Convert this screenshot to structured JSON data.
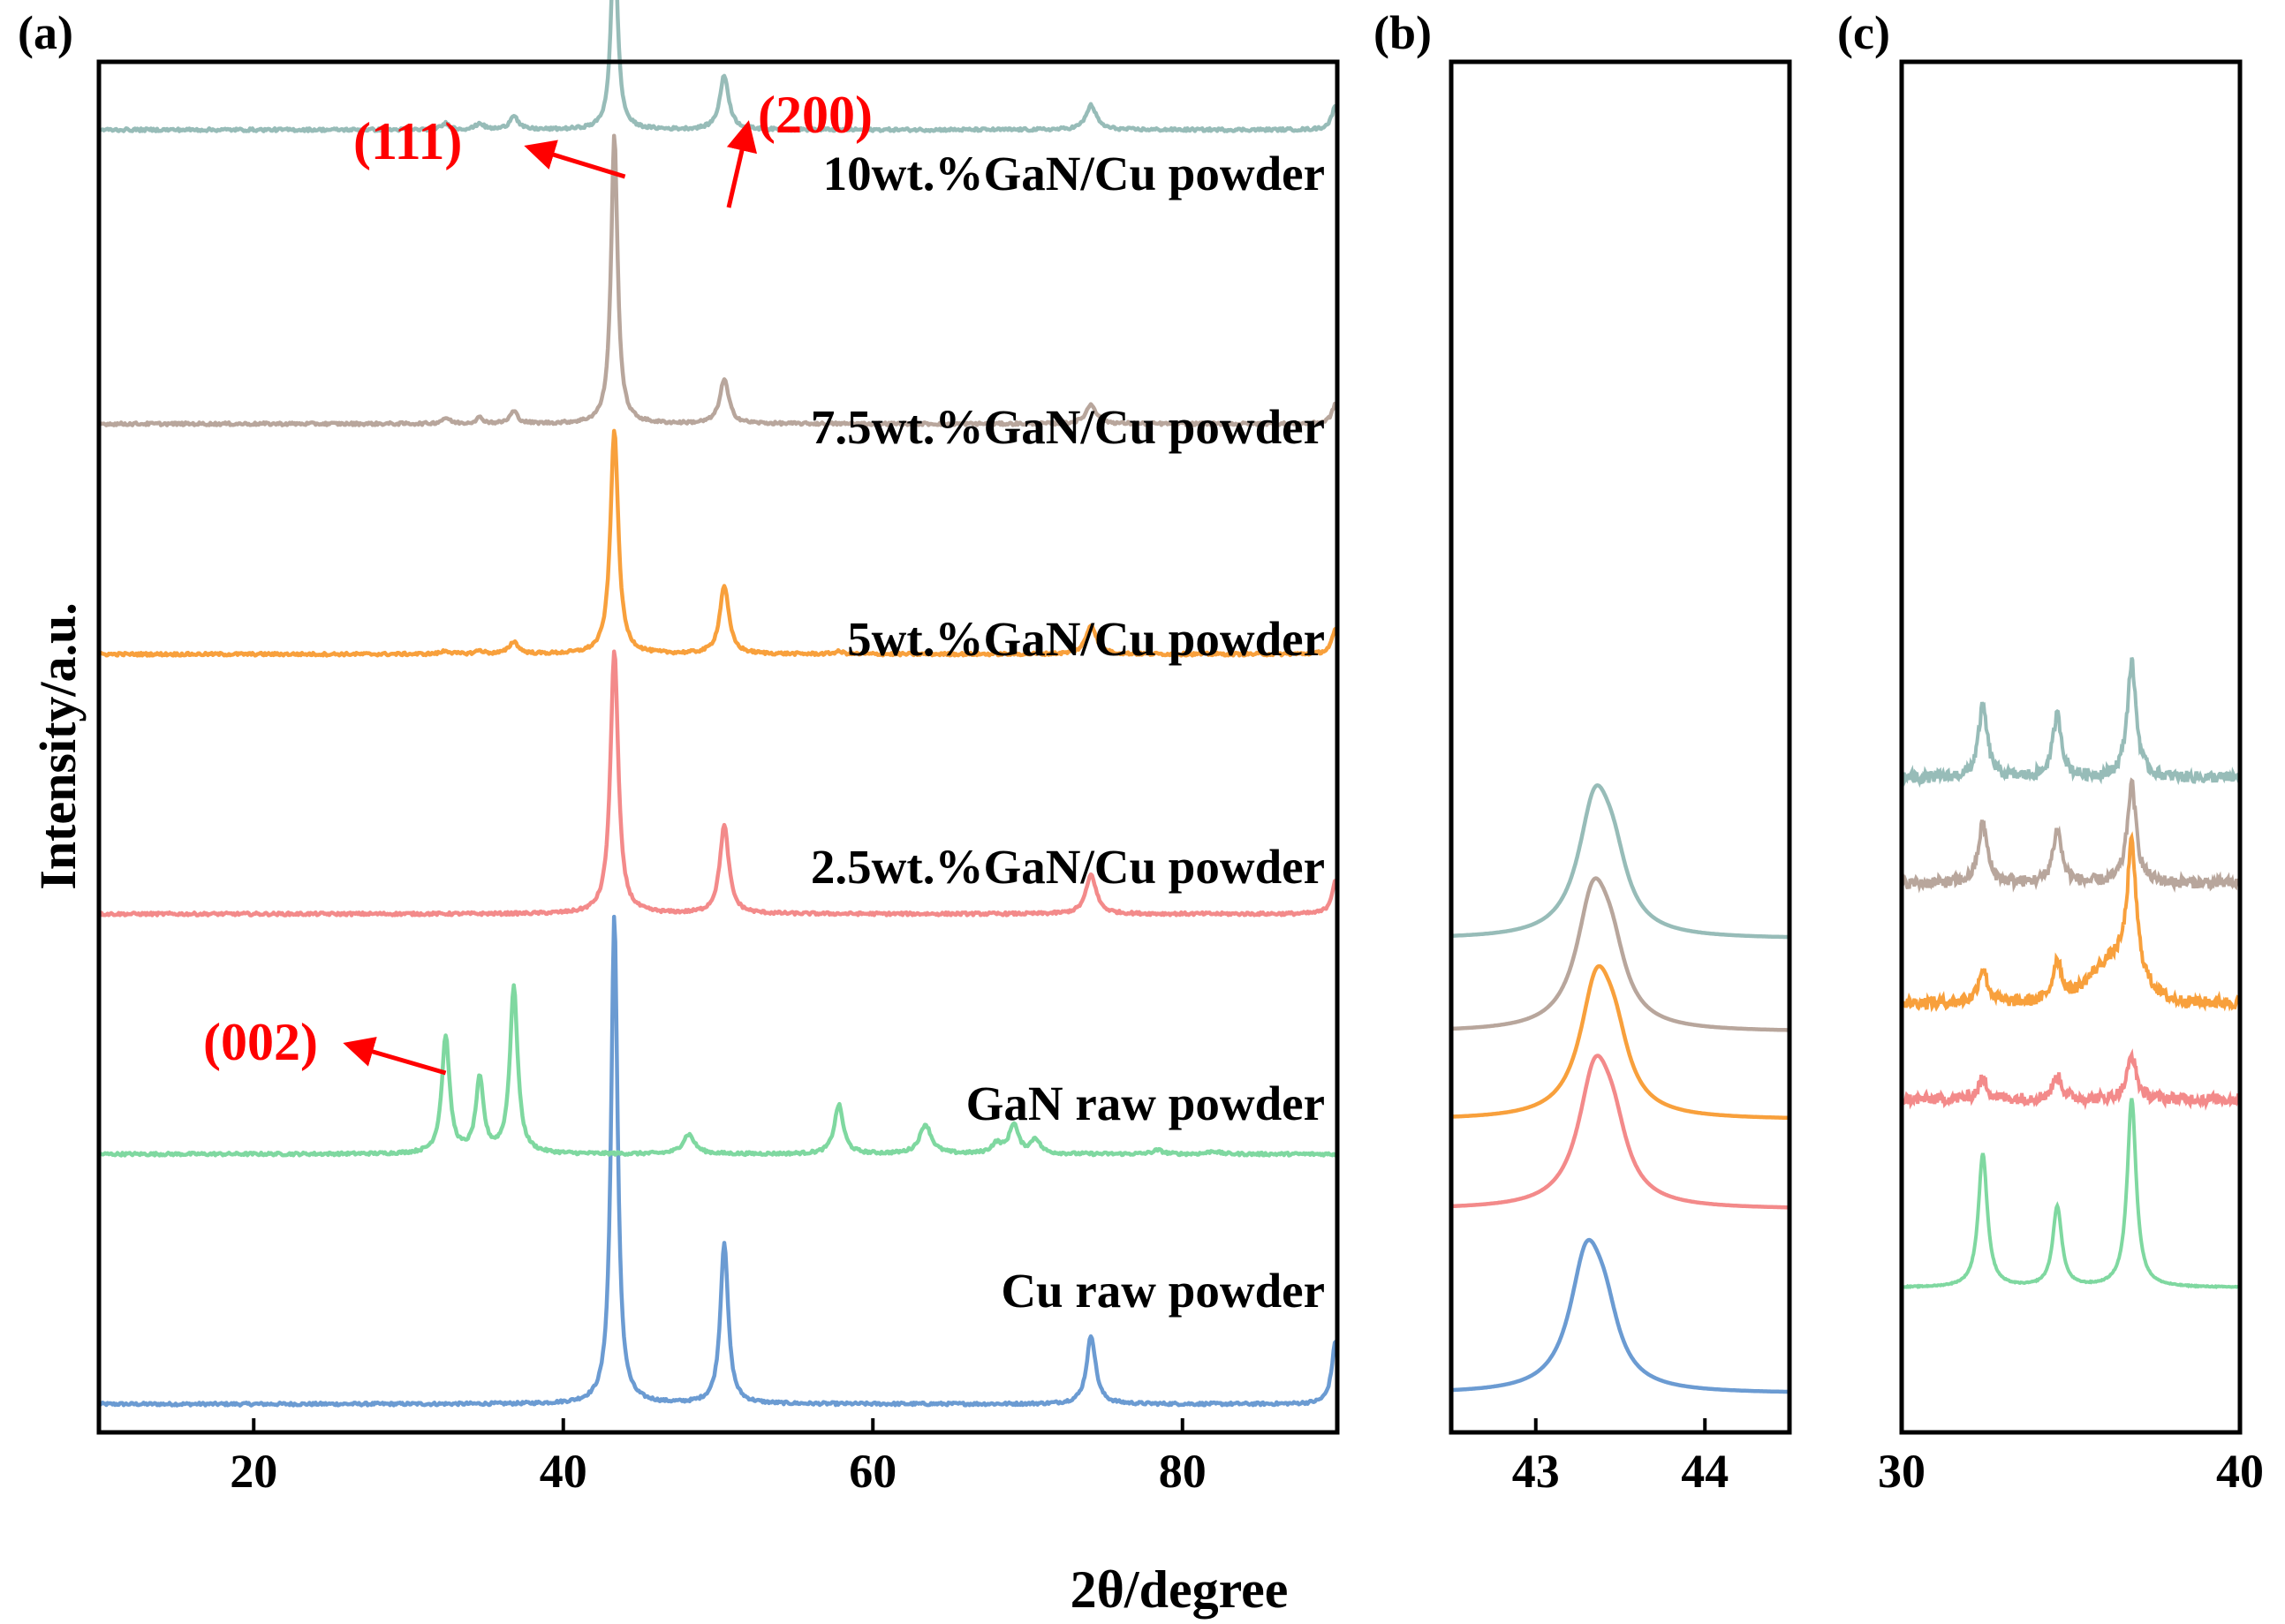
{
  "figure": {
    "x_axis_label": "2θ/degree",
    "y_axis_label": "Intensity/a.u."
  },
  "colors": {
    "Cu raw powder": "#6b9bd2",
    "GaN raw powder": "#7fd8a0",
    "2.5wt.%GaN/Cu powder": "#f38a8a",
    "5wt.%GaN/Cu powder": "#f8a03c",
    "7.5wt.%GaN/Cu powder": "#b8a69c",
    "10wt.%GaN/Cu powder": "#97bcb8",
    "annotation": "#ff0000"
  },
  "chart_data": [
    {
      "panel": "(a)",
      "type": "line",
      "xlabel": "2θ/degree",
      "ylabel": "Intensity/a.u.",
      "xlim": [
        10,
        90
      ],
      "xticks": [
        20,
        40,
        60,
        80
      ],
      "y_ticks_shown": false,
      "series": [
        {
          "name": "Cu raw powder",
          "label": "Cu raw powder",
          "offset": 0,
          "peaks": [
            {
              "x": 43.3,
              "h": 100,
              "w": 0.25
            },
            {
              "x": 50.4,
              "h": 33,
              "w": 0.3
            },
            {
              "x": 74.1,
              "h": 14,
              "w": 0.35
            },
            {
              "x": 89.9,
              "h": 13,
              "w": 0.3
            }
          ]
        },
        {
          "name": "GaN raw powder",
          "label": "GaN raw powder",
          "offset": 51,
          "peaks": [
            {
              "x": 32.4,
              "h": 24,
              "w": 0.3
            },
            {
              "x": 34.6,
              "h": 15,
              "w": 0.3
            },
            {
              "x": 36.8,
              "h": 34,
              "w": 0.3
            },
            {
              "x": 48.1,
              "h": 4,
              "w": 0.45
            },
            {
              "x": 57.8,
              "h": 10,
              "w": 0.35
            },
            {
              "x": 63.4,
              "h": 6,
              "w": 0.45
            },
            {
              "x": 68.0,
              "h": 2,
              "w": 0.4
            },
            {
              "x": 69.1,
              "h": 6,
              "w": 0.35
            },
            {
              "x": 70.5,
              "h": 3,
              "w": 0.35
            },
            {
              "x": 78.4,
              "h": 0.8,
              "w": 0.4
            },
            {
              "x": 82.0,
              "h": 0.6,
              "w": 0.4
            }
          ]
        },
        {
          "name": "2.5wt.%GaN/Cu powder",
          "label": "2.5wt.%GaN/Cu powder",
          "offset": 100,
          "peaks": [
            {
              "x": 43.3,
              "h": 54,
              "w": 0.3
            },
            {
              "x": 50.4,
              "h": 18,
              "w": 0.35
            },
            {
              "x": 74.1,
              "h": 8,
              "w": 0.4
            },
            {
              "x": 89.9,
              "h": 7,
              "w": 0.3
            }
          ]
        },
        {
          "name": "5wt.%GaN/Cu powder",
          "label": "5wt.%GaN/Cu powder",
          "offset": 153,
          "peaks": [
            {
              "x": 32.4,
              "h": 0.7,
              "w": 0.3
            },
            {
              "x": 34.6,
              "h": 0.7,
              "w": 0.3
            },
            {
              "x": 36.8,
              "h": 2.5,
              "w": 0.35
            },
            {
              "x": 43.3,
              "h": 46,
              "w": 0.3
            },
            {
              "x": 50.4,
              "h": 14,
              "w": 0.35
            },
            {
              "x": 57.8,
              "h": 0.5,
              "w": 0.35
            },
            {
              "x": 74.1,
              "h": 6,
              "w": 0.4
            },
            {
              "x": 89.9,
              "h": 5,
              "w": 0.3
            }
          ]
        },
        {
          "name": "7.5wt.%GaN/Cu powder",
          "label": "7.5wt.%GaN/Cu powder",
          "offset": 200,
          "peaks": [
            {
              "x": 32.4,
              "h": 1.2,
              "w": 0.3
            },
            {
              "x": 34.6,
              "h": 1.2,
              "w": 0.3
            },
            {
              "x": 36.8,
              "h": 2.5,
              "w": 0.3
            },
            {
              "x": 43.3,
              "h": 59,
              "w": 0.25
            },
            {
              "x": 50.4,
              "h": 9,
              "w": 0.35
            },
            {
              "x": 74.1,
              "h": 4,
              "w": 0.4
            },
            {
              "x": 89.9,
              "h": 4,
              "w": 0.3
            }
          ]
        },
        {
          "name": "10wt.%GaN/Cu powder",
          "label": "10wt.%GaN/Cu powder",
          "offset": 260,
          "peaks": [
            {
              "x": 32.4,
              "h": 1.3,
              "w": 0.3
            },
            {
              "x": 34.6,
              "h": 1.3,
              "w": 0.3
            },
            {
              "x": 36.8,
              "h": 3,
              "w": 0.3
            },
            {
              "x": 43.3,
              "h": 41,
              "w": 0.25
            },
            {
              "x": 50.4,
              "h": 11,
              "w": 0.35
            },
            {
              "x": 74.1,
              "h": 5,
              "w": 0.4
            },
            {
              "x": 89.9,
              "h": 5,
              "w": 0.3
            }
          ]
        }
      ],
      "annotations": [
        {
          "text": "(111)",
          "series": "10wt.%GaN/Cu powder",
          "x": 43.3
        },
        {
          "text": "(200)",
          "series": "10wt.%GaN/Cu powder",
          "x": 50.4
        },
        {
          "text": "(002)",
          "series": "GaN raw powder",
          "x": 32.4
        }
      ]
    },
    {
      "panel": "(b)",
      "type": "line",
      "xlabel": "2θ/degree",
      "xlim": [
        42.5,
        44.5
      ],
      "xticks": [
        43,
        44
      ],
      "y_ticks_shown": false,
      "series": [
        {
          "name": "Cu raw powder",
          "center": 43.3,
          "offset": 0,
          "height": 100
        },
        {
          "name": "2.5wt.%GaN/Cu powder",
          "center": 43.35,
          "offset": 107,
          "height": 100
        },
        {
          "name": "5wt.%GaN/Cu powder",
          "center": 43.36,
          "offset": 159,
          "height": 100
        },
        {
          "name": "7.5wt.%GaN/Cu powder",
          "center": 43.34,
          "offset": 210,
          "height": 100
        },
        {
          "name": "10wt.%GaN/Cu powder",
          "center": 43.35,
          "offset": 264,
          "height": 100
        }
      ]
    },
    {
      "panel": "(c)",
      "type": "line",
      "xlabel": "2θ/degree",
      "xlim": [
        30,
        40
      ],
      "xticks": [
        30,
        40
      ],
      "y_ticks_shown": false,
      "series": [
        {
          "name": "GaN raw powder",
          "offset": 0,
          "peaks": [
            {
              "x": 32.4,
              "h": 58
            },
            {
              "x": 34.6,
              "h": 35
            },
            {
              "x": 36.8,
              "h": 82
            }
          ]
        },
        {
          "name": "2.5wt.%GaN/Cu powder",
          "offset": 82,
          "peaks": [
            {
              "x": 32.4,
              "h": 9
            },
            {
              "x": 34.6,
              "h": 10
            },
            {
              "x": 36.8,
              "h": 19
            }
          ]
        },
        {
          "name": "5wt.%GaN/Cu powder",
          "offset": 124,
          "peaks": [
            {
              "x": 32.4,
              "h": 15
            },
            {
              "x": 34.6,
              "h": 18
            },
            {
              "x": 36.8,
              "h": 56
            }
          ]
        },
        {
          "name": "7.5wt.%GaN/Cu powder",
          "offset": 176,
          "peaks": [
            {
              "x": 32.4,
              "h": 26
            },
            {
              "x": 34.6,
              "h": 23
            },
            {
              "x": 36.8,
              "h": 43
            }
          ]
        },
        {
          "name": "10wt.%GaN/Cu powder",
          "offset": 222,
          "peaks": [
            {
              "x": 32.4,
              "h": 31
            },
            {
              "x": 34.6,
              "h": 27
            },
            {
              "x": 36.8,
              "h": 50
            }
          ]
        }
      ]
    }
  ]
}
